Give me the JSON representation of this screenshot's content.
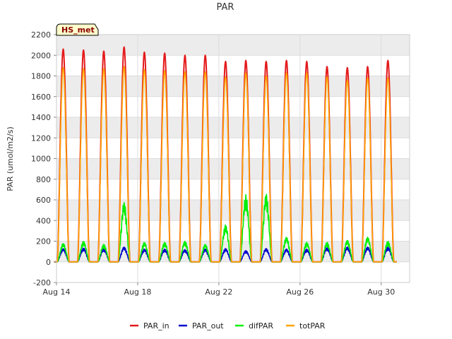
{
  "chart_data": {
    "type": "line",
    "title": "PAR",
    "xlabel": "",
    "ylabel": "PAR (umol/m2/s)",
    "site_badge": "HS_met",
    "xlim": [
      14.0,
      31.4
    ],
    "ylim": [
      -200,
      2200
    ],
    "yticks": [
      -200,
      0,
      200,
      400,
      600,
      800,
      1000,
      1200,
      1400,
      1600,
      1800,
      2000,
      2200
    ],
    "xticks": [
      {
        "value": 14,
        "label": "Aug 14"
      },
      {
        "value": 18,
        "label": "Aug 18"
      },
      {
        "value": 22,
        "label": "Aug 22"
      },
      {
        "value": 26,
        "label": "Aug 26"
      },
      {
        "value": 30,
        "label": "Aug 30"
      }
    ],
    "grid": true,
    "band_fill": "#ececec",
    "legend_position": "bottom",
    "days": [
      14.33,
      15.33,
      16.33,
      17.33,
      18.33,
      19.33,
      20.33,
      21.33,
      22.33,
      23.33,
      24.33,
      25.33,
      26.33,
      27.33,
      28.33,
      29.33,
      30.33
    ],
    "series": [
      {
        "name": "PAR_in",
        "color": "#e41a1c",
        "daily_peak": [
          2060,
          2050,
          2040,
          2080,
          2030,
          2020,
          2000,
          2000,
          1940,
          1950,
          1940,
          1950,
          1940,
          1890,
          1880,
          1890,
          1950
        ]
      },
      {
        "name": "PAR_out",
        "color": "#0000cc",
        "daily_peak": [
          130,
          135,
          130,
          145,
          125,
          125,
          120,
          125,
          130,
          110,
          130,
          125,
          125,
          140,
          145,
          145,
          145
        ]
      },
      {
        "name": "difPAR",
        "color": "#00ee00",
        "daily_peak": [
          180,
          200,
          170,
          580,
          190,
          190,
          200,
          170,
          360,
          650,
          660,
          240,
          190,
          190,
          210,
          240,
          200
        ]
      },
      {
        "name": "totPAR",
        "color": "#ffa500",
        "daily_peak": [
          1880,
          1870,
          1870,
          1890,
          1860,
          1850,
          1840,
          1840,
          1790,
          1830,
          1800,
          1830,
          1830,
          1790,
          1760,
          1780,
          1780
        ]
      }
    ]
  }
}
